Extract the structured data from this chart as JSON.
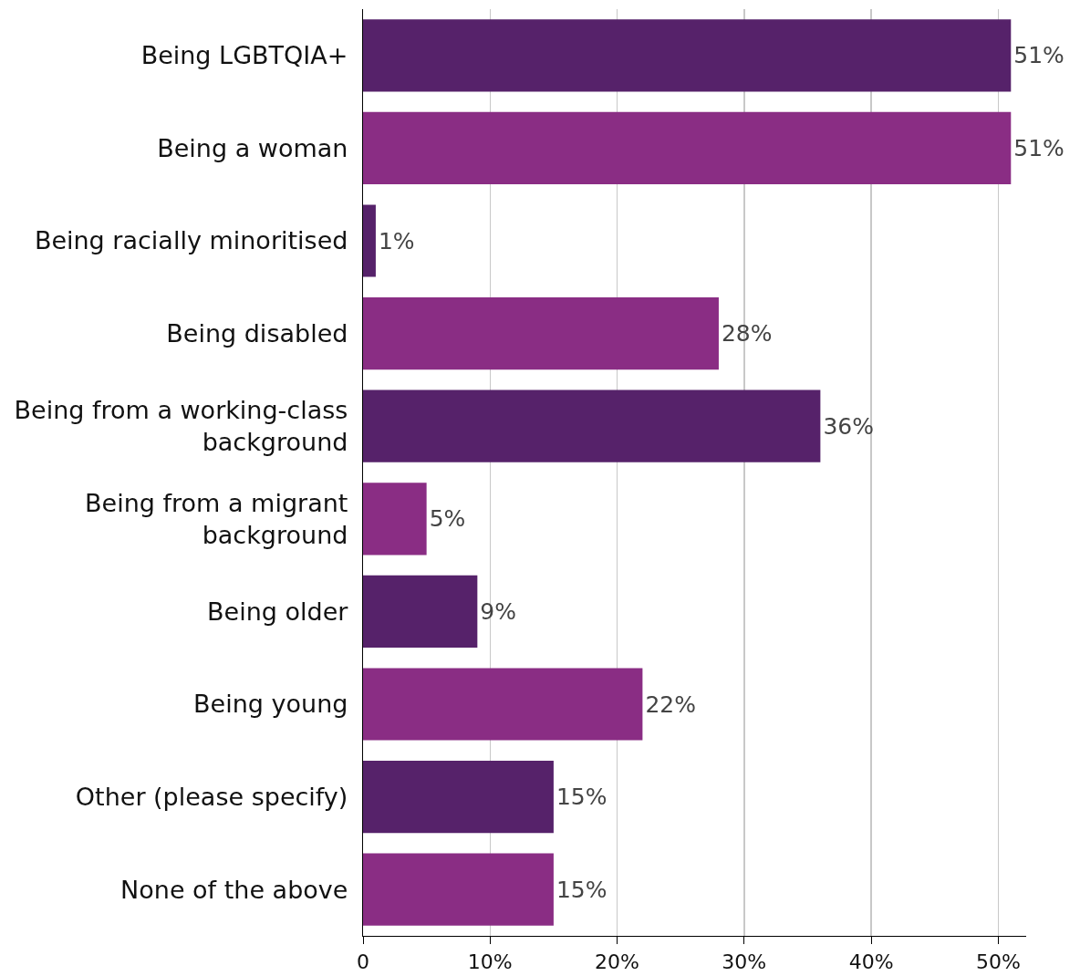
{
  "chart_data": {
    "type": "bar",
    "orientation": "horizontal",
    "categories": [
      "Being LGBTQIA+",
      "Being a woman",
      "Being racially minoritised",
      "Being disabled",
      "Being from a working-class background",
      "Being from a migrant background",
      "Being older",
      "Being young",
      "Other (please specify)",
      "None of the above"
    ],
    "values": [
      51,
      51,
      1,
      28,
      36,
      5,
      9,
      22,
      15,
      15
    ],
    "colors": [
      "#56226a",
      "#8a2d84",
      "#56226a",
      "#8a2d84",
      "#56226a",
      "#8a2d84",
      "#56226a",
      "#8a2d84",
      "#56226a",
      "#8a2d84"
    ],
    "value_labels": [
      "51%",
      "51%",
      "1%",
      "28%",
      "36%",
      "5%",
      "9%",
      "22%",
      "15%",
      "15%"
    ],
    "xlim": [
      0,
      52.2
    ],
    "xticks": [
      {
        "value": 0,
        "label": "0"
      },
      {
        "value": 10,
        "label": "10%"
      },
      {
        "value": 20,
        "label": "20%"
      },
      {
        "value": 30,
        "label": "30%"
      },
      {
        "value": 40,
        "label": "40%"
      },
      {
        "value": 50,
        "label": "50%"
      }
    ],
    "grid": "x",
    "legend": false
  }
}
